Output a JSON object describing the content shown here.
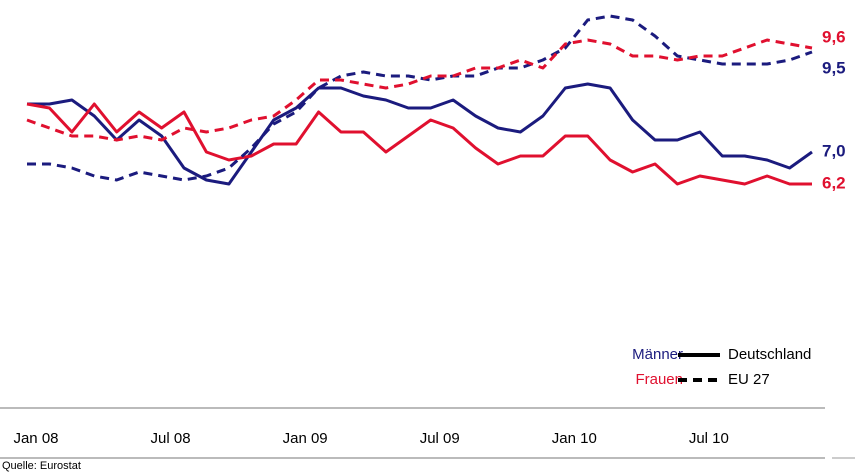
{
  "chart_data": {
    "type": "line",
    "categories": [
      "Jan 08",
      null,
      null,
      null,
      null,
      null,
      "Jul 08",
      null,
      null,
      null,
      null,
      null,
      "Jan 09",
      null,
      null,
      null,
      null,
      null,
      "Jul 09",
      null,
      null,
      null,
      null,
      null,
      "Jan 10",
      null,
      null,
      null,
      null,
      null,
      "Jul 10",
      null,
      null,
      null,
      null,
      null
    ],
    "ylim": [
      1,
      10.5
    ],
    "series": [
      {
        "color": "#1b1b7e",
        "dashed": false,
        "end_label": "7,0",
        "values": [
          8.2,
          8.2,
          8.3,
          7.9,
          7.3,
          7.8,
          7.4,
          6.6,
          6.3,
          6.2,
          7.0,
          7.8,
          8.1,
          8.6,
          8.6,
          8.4,
          8.3,
          8.1,
          8.1,
          8.3,
          7.9,
          7.6,
          7.5,
          7.9,
          8.6,
          8.7,
          8.6,
          7.8,
          7.3,
          7.3,
          7.5,
          6.9,
          6.9,
          6.8,
          6.6,
          7.0
        ]
      },
      {
        "color": "#e0102f",
        "dashed": false,
        "end_label": "6,2",
        "values": [
          8.2,
          8.1,
          7.5,
          8.2,
          7.5,
          8.0,
          7.6,
          8.0,
          7.0,
          6.8,
          6.9,
          7.2,
          7.2,
          8.0,
          7.5,
          7.5,
          7.0,
          7.4,
          7.8,
          7.6,
          7.1,
          6.7,
          6.9,
          6.9,
          7.4,
          7.4,
          6.8,
          6.5,
          6.7,
          6.2,
          6.4,
          6.3,
          6.2,
          6.4,
          6.2,
          6.2
        ]
      },
      {
        "color": "#1b1b7e",
        "dashed": true,
        "end_label": "9,5",
        "values": [
          6.7,
          6.7,
          6.6,
          6.4,
          6.3,
          6.5,
          6.4,
          6.3,
          6.4,
          6.6,
          7.1,
          7.7,
          8.0,
          8.6,
          8.9,
          9.0,
          8.9,
          8.9,
          8.8,
          8.9,
          8.9,
          9.1,
          9.1,
          9.3,
          9.6,
          10.3,
          10.4,
          10.3,
          9.9,
          9.4,
          9.3,
          9.2,
          9.2,
          9.2,
          9.3,
          9.5
        ]
      },
      {
        "color": "#e0102f",
        "dashed": true,
        "end_label": "9,6",
        "values": [
          7.8,
          7.6,
          7.4,
          7.4,
          7.3,
          7.4,
          7.3,
          7.6,
          7.5,
          7.6,
          7.8,
          7.9,
          8.3,
          8.8,
          8.8,
          8.7,
          8.6,
          8.7,
          8.9,
          8.9,
          9.1,
          9.1,
          9.3,
          9.1,
          9.7,
          9.8,
          9.7,
          9.4,
          9.4,
          9.3,
          9.4,
          9.4,
          9.6,
          9.8,
          9.7,
          9.6
        ]
      }
    ],
    "legend": {
      "colors": [
        {
          "label": "Männer",
          "color": "#1b1b7e"
        },
        {
          "label": "Frauen",
          "color": "#e0102f"
        }
      ],
      "styles": [
        {
          "label": "Deutschland",
          "dashed": false
        },
        {
          "label": "EU 27",
          "dashed": true
        }
      ]
    },
    "source": "Quelle: Eurostat"
  }
}
